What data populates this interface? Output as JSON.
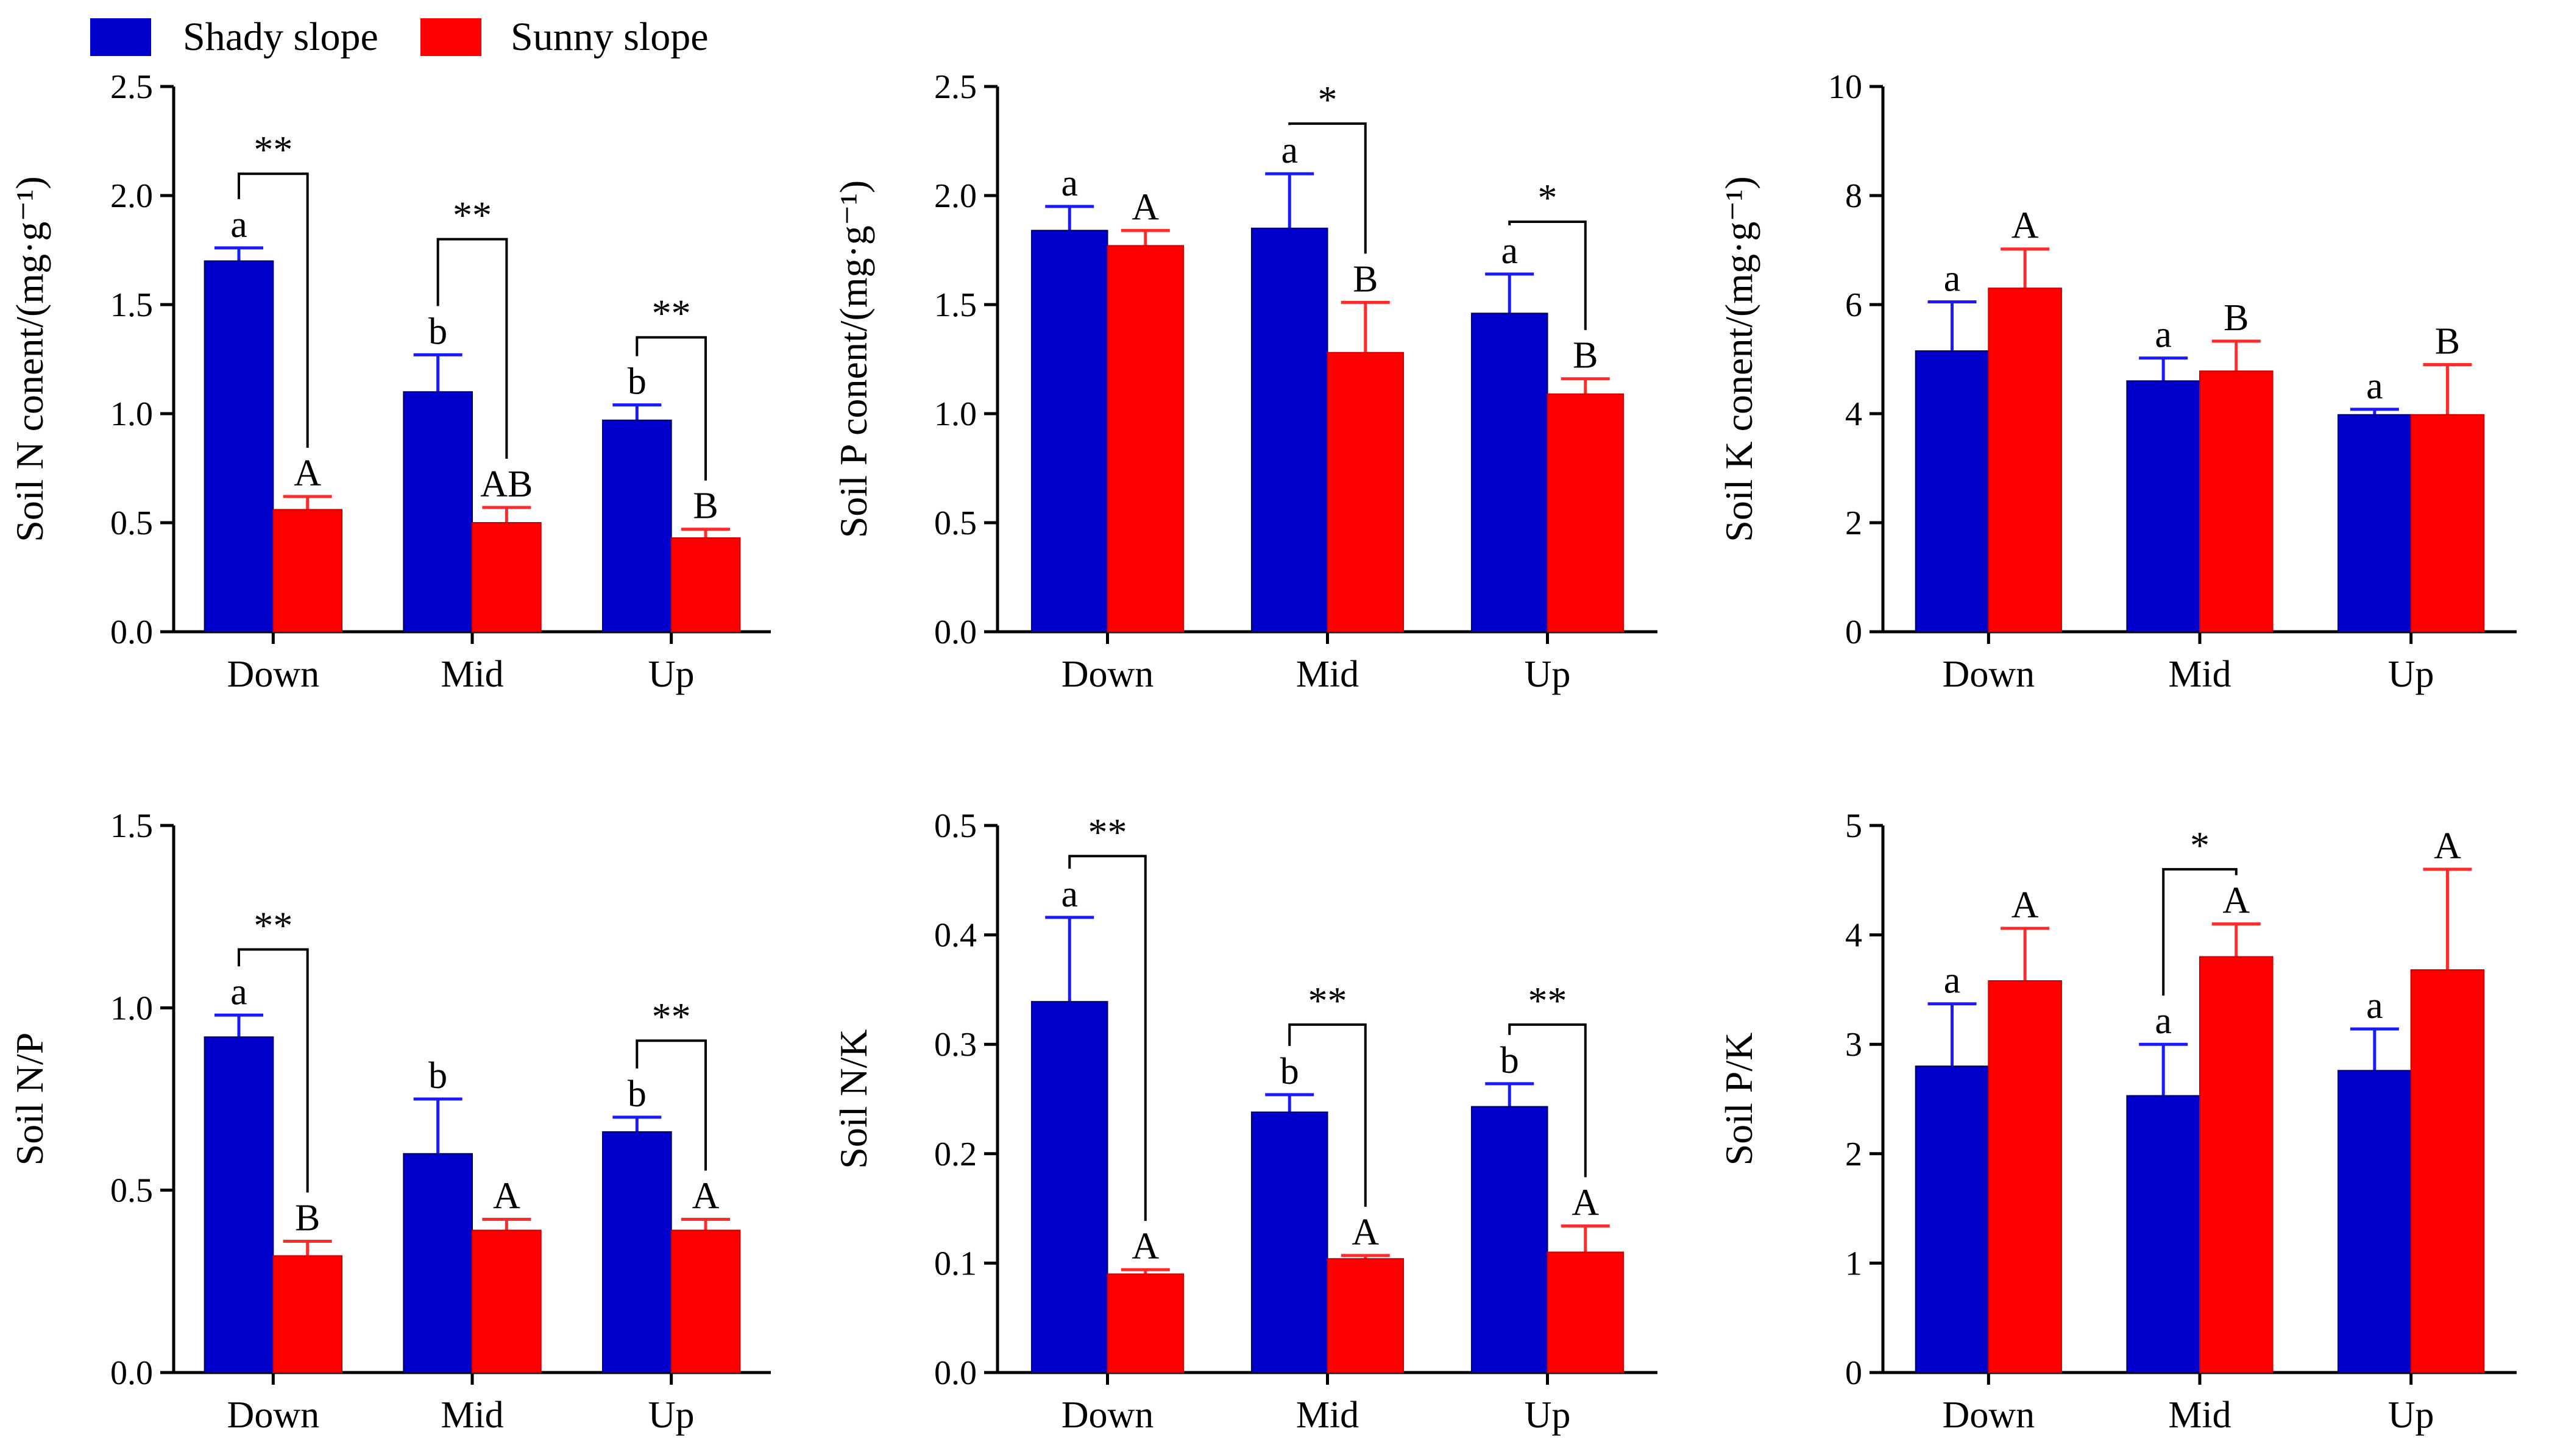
{
  "legend": {
    "items": [
      {
        "label": "Shady slope",
        "color": "#0000cc"
      },
      {
        "label": "Sunny slope",
        "color": "#ff0000"
      }
    ]
  },
  "chart_data": [
    {
      "type": "bar",
      "id": "soil-n",
      "ylabel": "Soil N conent/(mg·g⁻¹)",
      "ylim": [
        0,
        2.5
      ],
      "yticks": [
        "0.0",
        "0.5",
        "1.0",
        "1.5",
        "2.0",
        "2.5"
      ],
      "categories": [
        "Down",
        "Mid",
        "Up"
      ],
      "series": [
        {
          "name": "Shady slope",
          "values": [
            1.7,
            1.1,
            0.97
          ],
          "errors": [
            0.06,
            0.17,
            0.07
          ],
          "letters": [
            "a",
            "b",
            "b"
          ]
        },
        {
          "name": "Sunny slope",
          "values": [
            0.56,
            0.5,
            0.43
          ],
          "errors": [
            0.06,
            0.07,
            0.04
          ],
          "letters": [
            "A",
            "AB",
            "B"
          ]
        }
      ],
      "brackets": [
        {
          "category": 0,
          "label": "**",
          "top": 2.1
        },
        {
          "category": 1,
          "label": "**",
          "top": 1.8
        },
        {
          "category": 2,
          "label": "**",
          "top": 1.35
        }
      ]
    },
    {
      "type": "bar",
      "id": "soil-p",
      "ylabel": "Soil P conent/(mg·g⁻¹)",
      "ylim": [
        0,
        2.5
      ],
      "yticks": [
        "0.0",
        "0.5",
        "1.0",
        "1.5",
        "2.0",
        "2.5"
      ],
      "categories": [
        "Down",
        "Mid",
        "Up"
      ],
      "series": [
        {
          "name": "Shady slope",
          "values": [
            1.84,
            1.85,
            1.46
          ],
          "errors": [
            0.11,
            0.25,
            0.18
          ],
          "letters": [
            "a",
            "a",
            "a"
          ]
        },
        {
          "name": "Sunny slope",
          "values": [
            1.77,
            1.28,
            1.09
          ],
          "errors": [
            0.07,
            0.23,
            0.07
          ],
          "letters": [
            "A",
            "B",
            "B"
          ]
        }
      ],
      "brackets": [
        {
          "category": 1,
          "label": "*",
          "top": 2.33
        },
        {
          "category": 2,
          "label": "*",
          "top": 1.88
        }
      ]
    },
    {
      "type": "bar",
      "id": "soil-k",
      "ylabel": "Soil K conent/(mg·g⁻¹)",
      "ylim": [
        0,
        10
      ],
      "yticks": [
        "0",
        "2",
        "4",
        "6",
        "8",
        "10"
      ],
      "categories": [
        "Down",
        "Mid",
        "Up"
      ],
      "series": [
        {
          "name": "Shady slope",
          "values": [
            5.15,
            4.6,
            3.98
          ],
          "errors": [
            0.9,
            0.42,
            0.1
          ],
          "letters": [
            "a",
            "a",
            "a"
          ]
        },
        {
          "name": "Sunny slope",
          "values": [
            6.3,
            4.78,
            3.98
          ],
          "errors": [
            0.72,
            0.55,
            0.92
          ],
          "letters": [
            "A",
            "B",
            "B"
          ]
        }
      ],
      "brackets": []
    },
    {
      "type": "bar",
      "id": "soil-np",
      "ylabel": "Soil N/P",
      "ylim": [
        0,
        1.5
      ],
      "yticks": [
        "0.0",
        "0.5",
        "1.0",
        "1.5"
      ],
      "categories": [
        "Down",
        "Mid",
        "Up"
      ],
      "series": [
        {
          "name": "Shady slope",
          "values": [
            0.92,
            0.6,
            0.66
          ],
          "errors": [
            0.06,
            0.15,
            0.04
          ],
          "letters": [
            "a",
            "b",
            "b"
          ]
        },
        {
          "name": "Sunny slope",
          "values": [
            0.32,
            0.39,
            0.39
          ],
          "errors": [
            0.04,
            0.03,
            0.03
          ],
          "letters": [
            "B",
            "A",
            "A"
          ]
        }
      ],
      "brackets": [
        {
          "category": 0,
          "label": "**",
          "top": 1.16
        },
        {
          "category": 2,
          "label": "**",
          "top": 0.91
        }
      ]
    },
    {
      "type": "bar",
      "id": "soil-nk",
      "ylabel": "Soil N/K",
      "ylim": [
        0,
        0.5
      ],
      "yticks": [
        "0.0",
        "0.1",
        "0.2",
        "0.3",
        "0.4",
        "0.5"
      ],
      "categories": [
        "Down",
        "Mid",
        "Up"
      ],
      "series": [
        {
          "name": "Shady slope",
          "values": [
            0.339,
            0.238,
            0.243
          ],
          "errors": [
            0.077,
            0.016,
            0.021
          ],
          "letters": [
            "a",
            "b",
            "b"
          ]
        },
        {
          "name": "Sunny slope",
          "values": [
            0.09,
            0.104,
            0.11
          ],
          "errors": [
            0.004,
            0.003,
            0.024
          ],
          "letters": [
            "A",
            "A",
            "A"
          ]
        }
      ],
      "brackets": [
        {
          "category": 0,
          "label": "**",
          "top": 0.472
        },
        {
          "category": 1,
          "label": "**",
          "top": 0.318
        },
        {
          "category": 2,
          "label": "**",
          "top": 0.318
        }
      ]
    },
    {
      "type": "bar",
      "id": "soil-pk",
      "ylabel": "Soil P/K",
      "ylim": [
        0,
        5
      ],
      "yticks": [
        "0",
        "1",
        "2",
        "3",
        "4",
        "5"
      ],
      "categories": [
        "Down",
        "Mid",
        "Up"
      ],
      "series": [
        {
          "name": "Shady slope",
          "values": [
            2.8,
            2.53,
            2.76
          ],
          "errors": [
            0.57,
            0.47,
            0.38
          ],
          "letters": [
            "a",
            "a",
            "a"
          ]
        },
        {
          "name": "Sunny slope",
          "values": [
            3.58,
            3.8,
            3.68
          ],
          "errors": [
            0.48,
            0.3,
            0.92
          ],
          "letters": [
            "A",
            "A",
            "A"
          ]
        }
      ],
      "brackets": [
        {
          "category": 1,
          "label": "*",
          "top": 4.6
        }
      ]
    }
  ]
}
